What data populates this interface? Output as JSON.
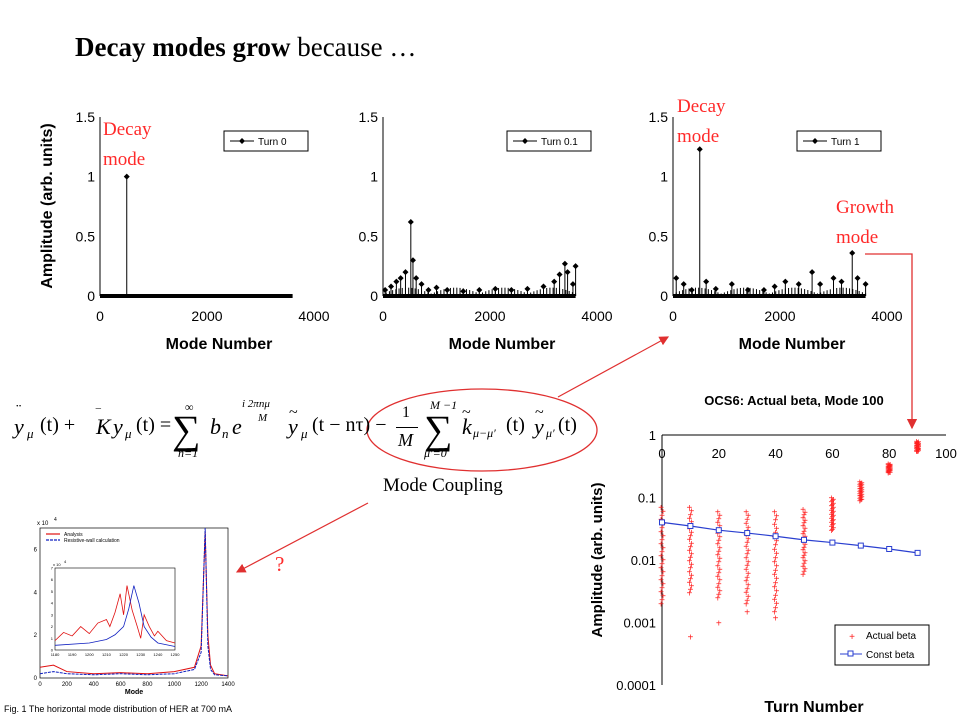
{
  "slide": {
    "title_bold": "Decay modes grow",
    "title_rest": " because …",
    "mode_coupling": "Mode Coupling",
    "question": "?"
  },
  "annotations": {
    "decay_mode_1": [
      "Decay",
      "mode"
    ],
    "decay_mode_2": [
      "Decay",
      "mode"
    ],
    "growth_mode": [
      "Growth",
      "mode"
    ]
  },
  "equation": {
    "lhs_1": "y",
    "lhs_sub_1": "μ",
    "lhs_1_arg": "(t) +",
    "k_sym": "K",
    "lhs_2": "y",
    "lhs_2_arg": "(t) =",
    "sum1_top": "∞",
    "sum1_bottom": "n=1",
    "bn": "b",
    "bn_sub": "n",
    "exp_base": "e",
    "exp_top": "i 2πnμ",
    "exp_bot": "M",
    "term1": "y",
    "term1_arg": "(t − nτ) −",
    "frac_num": "1",
    "frac_den": "M",
    "sum2_top": "M −1",
    "sum2_bottom": "μ′=0",
    "k2": "k",
    "k2_sub": "μ−μ′",
    "k2_arg": "(t)",
    "y3": "y",
    "y3_sub": "μ′",
    "y3_arg": "(t)"
  },
  "colors": {
    "annotation": "#ff2a2a",
    "arrow": "#e03030",
    "circle": "#e03030",
    "actual_beta": "#ff2020",
    "const_beta": "#2a3fd0"
  },
  "chart_data": [
    {
      "type": "scatter",
      "title": "",
      "xlabel": "Mode Number",
      "ylabel": "Amplitude (arb. units)",
      "xlim": [
        0,
        4000
      ],
      "ylim": [
        0,
        1.5
      ],
      "xticks": [
        "0",
        "2000",
        "4000"
      ],
      "yticks": [
        "0",
        "0.5",
        "1",
        "1.5"
      ],
      "legend": "top-right",
      "series": [
        {
          "name": "Turn 0",
          "points": [
            [
              500,
              1.0
            ]
          ],
          "baseline_range": [
            0,
            3600
          ]
        }
      ]
    },
    {
      "type": "scatter",
      "title": "",
      "xlabel": "Mode Number",
      "ylabel": "",
      "xlim": [
        0,
        4000
      ],
      "ylim": [
        0,
        1.5
      ],
      "xticks": [
        "0",
        "2000",
        "4000"
      ],
      "yticks": [
        "0",
        "0.5",
        "1",
        "1.5"
      ],
      "legend": "top-right",
      "series": [
        {
          "name": "Turn 0.1",
          "points": [
            [
              40,
              0.05
            ],
            [
              150,
              0.08
            ],
            [
              250,
              0.12
            ],
            [
              330,
              0.15
            ],
            [
              420,
              0.2
            ],
            [
              520,
              0.62
            ],
            [
              560,
              0.3
            ],
            [
              620,
              0.15
            ],
            [
              720,
              0.1
            ],
            [
              850,
              0.05
            ],
            [
              1000,
              0.07
            ],
            [
              1200,
              0.05
            ],
            [
              1500,
              0.04
            ],
            [
              1800,
              0.05
            ],
            [
              2100,
              0.06
            ],
            [
              2400,
              0.05
            ],
            [
              2700,
              0.06
            ],
            [
              3000,
              0.08
            ],
            [
              3200,
              0.12
            ],
            [
              3300,
              0.18
            ],
            [
              3400,
              0.27
            ],
            [
              3450,
              0.2
            ],
            [
              3550,
              0.1
            ],
            [
              3600,
              0.25
            ]
          ],
          "baseline_range": [
            0,
            3600
          ]
        }
      ]
    },
    {
      "type": "scatter",
      "title": "",
      "xlabel": "Mode Number",
      "ylabel": "",
      "xlim": [
        0,
        4000
      ],
      "ylim": [
        0,
        1.5
      ],
      "xticks": [
        "0",
        "2000",
        "4000"
      ],
      "yticks": [
        "0",
        "0.5",
        "1",
        "1.5"
      ],
      "legend": "top-right",
      "series": [
        {
          "name": "Turn 1",
          "points": [
            [
              60,
              0.15
            ],
            [
              200,
              0.1
            ],
            [
              350,
              0.05
            ],
            [
              500,
              1.23
            ],
            [
              620,
              0.12
            ],
            [
              800,
              0.06
            ],
            [
              1100,
              0.1
            ],
            [
              1400,
              0.05
            ],
            [
              1700,
              0.05
            ],
            [
              1900,
              0.08
            ],
            [
              2100,
              0.12
            ],
            [
              2350,
              0.1
            ],
            [
              2600,
              0.2
            ],
            [
              2750,
              0.1
            ],
            [
              3000,
              0.15
            ],
            [
              3150,
              0.12
            ],
            [
              3350,
              0.36
            ],
            [
              3450,
              0.15
            ],
            [
              3600,
              0.1
            ]
          ],
          "baseline_range": [
            0,
            3600
          ]
        }
      ]
    },
    {
      "type": "scatter",
      "title": "OCS6: Actual beta, Mode 100",
      "xlabel": "Turn Number",
      "ylabel": "Amplitude (arb. units)",
      "xlim": [
        0,
        100
      ],
      "ylim": [
        0.0001,
        1
      ],
      "yscale": "log",
      "xticks": [
        "0",
        "20",
        "40",
        "60",
        "80",
        "100"
      ],
      "yticks": [
        "0.0001",
        "0.001",
        "0.01",
        "0.1",
        "1"
      ],
      "legend": "bottom-right",
      "series": [
        {
          "name": "Actual beta",
          "turns": [
            0,
            10,
            20,
            30,
            40,
            50,
            60,
            70,
            80,
            90
          ],
          "max": [
            0.07,
            0.07,
            0.06,
            0.06,
            0.06,
            0.065,
            0.1,
            0.18,
            0.35,
            0.8
          ],
          "min": [
            0.002,
            0.003,
            0.0025,
            0.002,
            0.0015,
            0.006,
            0.03,
            0.09,
            0.25,
            0.55
          ],
          "outliers": [
            [
              10,
              0.0006
            ],
            [
              20,
              0.001
            ],
            [
              30,
              0.0015
            ],
            [
              40,
              0.0012
            ]
          ]
        },
        {
          "name": "Const beta",
          "x": [
            0,
            10,
            20,
            30,
            40,
            50,
            60,
            70,
            80,
            90
          ],
          "y": [
            0.04,
            0.035,
            0.03,
            0.027,
            0.024,
            0.021,
            0.019,
            0.017,
            0.015,
            0.013
          ]
        }
      ]
    },
    {
      "type": "line",
      "title": "",
      "xlabel": "Mode",
      "ylabel": "",
      "y_exponent": "x 10",
      "y_exponent_power": "4",
      "xlim": [
        0,
        1400
      ],
      "ylim": [
        0,
        7
      ],
      "xticks": [
        "0",
        "200",
        "400",
        "600",
        "800",
        "1000",
        "1200",
        "1400"
      ],
      "yticks": [
        "0",
        "2",
        "4",
        "6"
      ],
      "legend": "top-left",
      "series": [
        {
          "name": "Analysis",
          "x": [
            0,
            100,
            200,
            400,
            600,
            800,
            1000,
            1150,
            1200,
            1230,
            1250,
            1270,
            1300,
            1400
          ],
          "y": [
            0.5,
            0.6,
            0.3,
            0.2,
            0.25,
            0.2,
            0.3,
            0.5,
            1.5,
            6.8,
            2.0,
            0.6,
            0.2,
            0.1
          ]
        },
        {
          "name": "Resistive-wall calculation",
          "x": [
            0,
            100,
            200,
            400,
            600,
            800,
            1000,
            1150,
            1200,
            1230,
            1250,
            1270,
            1300,
            1400
          ],
          "y": [
            0.2,
            0.3,
            0.2,
            0.15,
            0.2,
            0.15,
            0.2,
            0.4,
            1.2,
            7.0,
            1.5,
            0.4,
            0.15,
            0.1
          ]
        }
      ],
      "inset": {
        "y_exponent": "x 10",
        "y_exponent_power": "4",
        "yticks": [
          "0",
          "1",
          "2",
          "3",
          "4",
          "5",
          "6",
          "7"
        ],
        "xticks": [
          "1180",
          "1190",
          "1200",
          "1210",
          "1220",
          "1230",
          "1240",
          "1250"
        ],
        "xlim": [
          1180,
          1250
        ],
        "ylim": [
          0,
          7
        ],
        "series": [
          {
            "name": "Analysis",
            "x": [
              1180,
              1185,
              1190,
              1195,
              1200,
              1205,
              1210,
              1212,
              1215,
              1218,
              1220,
              1222,
              1225,
              1228,
              1230,
              1232,
              1235,
              1238,
              1240,
              1245,
              1250
            ],
            "y": [
              0.8,
              1.5,
              1.2,
              2.0,
              1.4,
              2.3,
              2.6,
              2.0,
              3.2,
              4.8,
              3.0,
              5.5,
              3.4,
              2.0,
              1.0,
              3.0,
              2.0,
              1.2,
              1.6,
              0.8,
              0.6
            ]
          },
          {
            "name": "Resistive-wall calculation",
            "x": [
              1180,
              1200,
              1210,
              1215,
              1220,
              1223,
              1226,
              1229,
              1232,
              1236,
              1240,
              1250
            ],
            "y": [
              0.4,
              0.6,
              0.9,
              1.3,
              2.0,
              3.5,
              5.5,
              4.0,
              2.0,
              1.1,
              0.6,
              0.3
            ]
          }
        ]
      },
      "caption": "Fig. 1 The horizontal mode distribution of HER at 700 mA"
    }
  ]
}
